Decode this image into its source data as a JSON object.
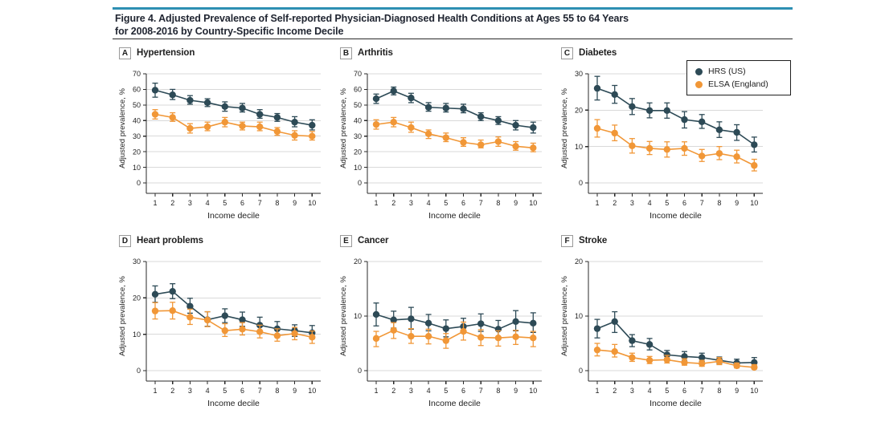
{
  "figure": {
    "title_lines": [
      "Figure 4. Adjusted Prevalence of Self-reported Physician-Diagnosed Health Conditions at Ages 55 to 64 Years",
      "for 2008-2016 by Country-Specific Income Decile"
    ]
  },
  "colors": {
    "hrs": "#2d4a56",
    "elsa": "#f19737",
    "grid": "#d9d9d9",
    "axis": "#2a2a2a",
    "text": "#1f1f1f",
    "accent_rule": "#2e8fb3"
  },
  "legend": {
    "items": [
      {
        "series": "hrs",
        "label": "HRS (US)"
      },
      {
        "series": "elsa",
        "label": "ELSA (England)"
      }
    ]
  },
  "chart_data": {
    "type": "line",
    "error_bars": true,
    "x_label": "Income decile",
    "y_label": "Adjusted prevalence, %",
    "x": [
      1,
      2,
      3,
      4,
      5,
      6,
      7,
      8,
      9,
      10
    ],
    "series_names": [
      "HRS (US)",
      "ELSA (England)"
    ],
    "panels": [
      {
        "label": "A",
        "title": "Hypertension",
        "ylim": [
          0,
          70
        ],
        "yticks": [
          0,
          10,
          20,
          30,
          40,
          50,
          60,
          70
        ],
        "hrs": {
          "values": [
            59.5,
            56.5,
            53,
            51.5,
            49,
            48,
            44,
            42,
            39,
            37
          ],
          "ci_low": [
            55,
            53.5,
            50.5,
            49,
            46,
            45.5,
            41.5,
            39.5,
            36,
            34
          ],
          "ci_high": [
            64,
            60,
            56,
            54,
            52,
            51,
            47,
            44.5,
            42.5,
            40.5
          ]
        },
        "elsa": {
          "values": [
            44,
            42,
            35,
            36,
            39,
            36.5,
            36,
            33,
            30.5,
            30
          ],
          "ci_low": [
            41,
            39.5,
            32,
            33.5,
            36,
            34,
            33.5,
            30.5,
            27.5,
            27.5
          ],
          "ci_high": [
            47,
            45,
            38,
            39,
            42,
            39,
            39,
            35.5,
            33.5,
            33
          ]
        }
      },
      {
        "label": "B",
        "title": "Arthritis",
        "ylim": [
          0,
          70
        ],
        "yticks": [
          0,
          10,
          20,
          30,
          40,
          50,
          60,
          70
        ],
        "hrs": {
          "values": [
            54,
            59,
            54.5,
            48.5,
            48,
            47.5,
            42.5,
            40,
            37,
            35.5
          ],
          "ci_low": [
            51,
            56.5,
            51.5,
            46,
            45.5,
            45,
            40,
            37.5,
            34,
            32
          ],
          "ci_high": [
            57,
            61.5,
            57.5,
            51.5,
            51,
            50.5,
            45,
            42.5,
            40,
            39
          ]
        },
        "elsa": {
          "values": [
            37.5,
            39,
            35.5,
            31.5,
            29,
            26,
            24.5,
            26.5,
            23.5,
            22.5
          ],
          "ci_low": [
            34.5,
            36,
            32.5,
            28.5,
            26.5,
            23.5,
            22.5,
            23.5,
            21,
            20
          ],
          "ci_high": [
            40.5,
            42,
            39,
            34,
            32,
            29,
            27.5,
            29.5,
            26.5,
            25.5
          ]
        }
      },
      {
        "label": "C",
        "title": "Diabetes",
        "ylim": [
          0,
          30
        ],
        "yticks": [
          0,
          10,
          20,
          30
        ],
        "hrs": {
          "values": [
            26,
            24.3,
            21,
            19.9,
            19.9,
            17.4,
            16.8,
            14.6,
            13.9,
            10.5
          ],
          "ci_low": [
            22.8,
            21.9,
            18.8,
            17.9,
            17.8,
            15.1,
            15,
            12.5,
            11.7,
            8.5
          ],
          "ci_high": [
            29.3,
            26.8,
            23.2,
            22,
            22,
            19.6,
            18.8,
            16.8,
            16,
            12.6
          ]
        },
        "elsa": {
          "values": [
            15,
            13.7,
            10.2,
            9.5,
            9.2,
            9.5,
            7.4,
            8.1,
            7.2,
            4.8
          ],
          "ci_low": [
            12.6,
            11.6,
            8.2,
            7.8,
            7.1,
            7.6,
            5.9,
            6.4,
            5.5,
            3.3
          ],
          "ci_high": [
            17.4,
            15.9,
            12.2,
            11.4,
            11.3,
            11.3,
            9.2,
            10,
            9,
            6.5
          ]
        }
      },
      {
        "label": "D",
        "title": "Heart problems",
        "ylim": [
          0,
          30
        ],
        "yticks": [
          0,
          10,
          20,
          30
        ],
        "hrs": {
          "values": [
            21,
            21.8,
            17.7,
            14,
            15.1,
            14,
            12.5,
            11.5,
            11,
            10.4
          ],
          "ci_low": [
            18.8,
            19.8,
            15.8,
            12.2,
            13.2,
            12.2,
            10.8,
            9.8,
            9.4,
            8.8
          ],
          "ci_high": [
            23.3,
            23.9,
            19.9,
            16.2,
            17,
            16.1,
            14.7,
            13.5,
            12.6,
            12.4
          ]
        },
        "elsa": {
          "values": [
            16.4,
            16.5,
            14.7,
            13.9,
            11,
            11.4,
            10.7,
            9.6,
            10.2,
            9.2
          ],
          "ci_low": [
            14.2,
            14.2,
            12.7,
            12.1,
            9.4,
            9.8,
            9,
            8.1,
            8.5,
            7.5
          ],
          "ci_high": [
            18.7,
            18.8,
            16.9,
            16.2,
            12.9,
            13.2,
            12.5,
            11.5,
            11.9,
            10.9
          ]
        }
      },
      {
        "label": "E",
        "title": "Cancer",
        "ylim": [
          0,
          20
        ],
        "yticks": [
          0,
          10,
          20
        ],
        "hrs": {
          "values": [
            10.3,
            9.3,
            9.5,
            8.7,
            7.7,
            8.1,
            8.6,
            7.6,
            9,
            8.7
          ],
          "ci_low": [
            8.2,
            7.8,
            7.6,
            7.3,
            6.2,
            6.9,
            7.2,
            6.2,
            7.3,
            7
          ],
          "ci_high": [
            12.4,
            10.9,
            11.6,
            10.3,
            9.3,
            9.6,
            10.4,
            9.2,
            11,
            10.6
          ]
        },
        "elsa": {
          "values": [
            5.9,
            7.4,
            6.3,
            6.3,
            5.5,
            7.2,
            6.1,
            6,
            6.2,
            6
          ],
          "ci_low": [
            4.4,
            5.9,
            5,
            4.9,
            4.1,
            5.6,
            4.6,
            4.5,
            4.8,
            4.4
          ],
          "ci_high": [
            7.2,
            8.8,
            7.7,
            7.6,
            6.8,
            8.9,
            7.5,
            7.3,
            7.4,
            7.2
          ]
        }
      },
      {
        "label": "F",
        "title": "Stroke",
        "ylim": [
          0,
          20
        ],
        "yticks": [
          0,
          10,
          20
        ],
        "hrs": {
          "values": [
            7.7,
            9,
            5.5,
            4.8,
            2.9,
            2.6,
            2.4,
            1.9,
            1.4,
            1.5
          ],
          "ci_low": [
            6,
            7,
            4.4,
            3.8,
            2.2,
            1.9,
            1.7,
            1.3,
            0.9,
            0.9
          ],
          "ci_high": [
            9.4,
            10.8,
            6.6,
            5.9,
            3.7,
            3.5,
            3.2,
            2.5,
            2.1,
            2.4
          ]
        },
        "elsa": {
          "values": [
            3.8,
            3.5,
            2.4,
            1.9,
            2,
            1.5,
            1.3,
            1.7,
            0.9,
            0.6
          ],
          "ci_low": [
            2.7,
            2.5,
            1.7,
            1.3,
            1.4,
            1,
            0.8,
            1.1,
            0.5,
            0.3
          ],
          "ci_high": [
            5,
            4.8,
            3.2,
            2.6,
            2.8,
            2.2,
            1.9,
            2.4,
            1.4,
            1.1
          ]
        }
      }
    ]
  }
}
